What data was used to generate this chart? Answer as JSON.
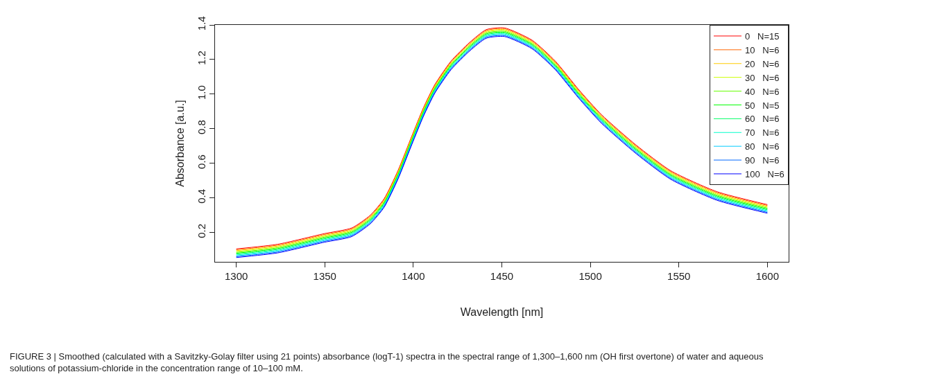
{
  "chart_data": {
    "type": "line",
    "xlabel": "Wavelength [nm]",
    "ylabel": "Absorbance [a.u.]",
    "x": [
      1300,
      1323.5,
      1349.6,
      1365.2,
      1375.7,
      1383.5,
      1391.3,
      1399.2,
      1405.7,
      1412.2,
      1421.3,
      1431.8,
      1441.2,
      1451.5,
      1467.1,
      1480.2,
      1493.2,
      1506.3,
      1525.9,
      1545.4,
      1571.5,
      1600
    ],
    "xlim": [
      1288,
      1612
    ],
    "xticks": [
      1300,
      1350,
      1400,
      1450,
      1500,
      1550,
      1600
    ],
    "ylim": [
      0.03,
      1.4
    ],
    "yticks": [
      0.2,
      0.4,
      0.6,
      0.8,
      {
        "value": 1,
        "label": "1.0"
      },
      1.2,
      1.4
    ],
    "legend": "top right",
    "line_style": "solid",
    "marker": "none",
    "series": [
      {
        "name": "0   N=15",
        "color": "#ff0000",
        "values": [
          0.105,
          0.132,
          0.193,
          0.226,
          0.3,
          0.395,
          0.557,
          0.759,
          0.921,
          1.056,
          1.191,
          1.299,
          1.373,
          1.383,
          1.312,
          1.191,
          1.029,
          0.881,
          0.705,
          0.557,
          0.436,
          0.361
        ]
      },
      {
        "name": "10   N=6",
        "color": "#ff6600",
        "values": [
          0.1,
          0.127,
          0.188,
          0.221,
          0.295,
          0.39,
          0.552,
          0.754,
          0.916,
          1.051,
          1.186,
          1.294,
          1.368,
          1.378,
          1.307,
          1.186,
          1.024,
          0.876,
          0.7,
          0.552,
          0.431,
          0.356
        ]
      },
      {
        "name": "20   N=6",
        "color": "#ffcc00",
        "values": [
          0.095,
          0.122,
          0.183,
          0.216,
          0.29,
          0.385,
          0.547,
          0.749,
          0.911,
          1.046,
          1.181,
          1.289,
          1.363,
          1.373,
          1.302,
          1.181,
          1.019,
          0.871,
          0.695,
          0.547,
          0.426,
          0.351
        ]
      },
      {
        "name": "30   N=6",
        "color": "#ccff00",
        "values": [
          0.09,
          0.117,
          0.178,
          0.211,
          0.285,
          0.38,
          0.542,
          0.744,
          0.906,
          1.041,
          1.176,
          1.284,
          1.358,
          1.368,
          1.297,
          1.176,
          1.014,
          0.866,
          0.69,
          0.542,
          0.421,
          0.346
        ]
      },
      {
        "name": "40   N=6",
        "color": "#66ff00",
        "values": [
          0.085,
          0.112,
          0.173,
          0.206,
          0.28,
          0.375,
          0.537,
          0.739,
          0.901,
          1.036,
          1.171,
          1.279,
          1.353,
          1.363,
          1.292,
          1.171,
          1.009,
          0.861,
          0.685,
          0.537,
          0.416,
          0.341
        ]
      },
      {
        "name": "50   N=5",
        "color": "#00ff00",
        "values": [
          0.08,
          0.107,
          0.168,
          0.201,
          0.275,
          0.37,
          0.532,
          0.734,
          0.896,
          1.031,
          1.166,
          1.274,
          1.348,
          1.358,
          1.287,
          1.166,
          1.004,
          0.856,
          0.68,
          0.532,
          0.411,
          0.336
        ]
      },
      {
        "name": "60   N=6",
        "color": "#00ff66",
        "values": [
          0.075,
          0.102,
          0.163,
          0.196,
          0.27,
          0.365,
          0.527,
          0.729,
          0.891,
          1.026,
          1.161,
          1.269,
          1.343,
          1.353,
          1.282,
          1.161,
          0.999,
          0.851,
          0.675,
          0.527,
          0.406,
          0.331
        ]
      },
      {
        "name": "70   N=6",
        "color": "#00ffcc",
        "values": [
          0.07,
          0.097,
          0.158,
          0.191,
          0.265,
          0.36,
          0.522,
          0.724,
          0.886,
          1.021,
          1.156,
          1.264,
          1.338,
          1.348,
          1.277,
          1.156,
          0.994,
          0.846,
          0.67,
          0.522,
          0.401,
          0.326
        ]
      },
      {
        "name": "80   N=6",
        "color": "#00ccff",
        "values": [
          0.065,
          0.092,
          0.153,
          0.186,
          0.26,
          0.355,
          0.517,
          0.719,
          0.881,
          1.016,
          1.151,
          1.259,
          1.333,
          1.343,
          1.272,
          1.151,
          0.989,
          0.841,
          0.665,
          0.517,
          0.396,
          0.321
        ]
      },
      {
        "name": "90   N=6",
        "color": "#0066ff",
        "values": [
          0.06,
          0.087,
          0.148,
          0.181,
          0.255,
          0.35,
          0.512,
          0.714,
          0.876,
          1.011,
          1.146,
          1.254,
          1.328,
          1.338,
          1.267,
          1.146,
          0.984,
          0.836,
          0.66,
          0.512,
          0.391,
          0.316
        ]
      },
      {
        "name": "100   N=6",
        "color": "#0000ff",
        "values": [
          0.055,
          0.082,
          0.143,
          0.176,
          0.25,
          0.345,
          0.507,
          0.709,
          0.871,
          1.006,
          1.141,
          1.249,
          1.323,
          1.333,
          1.262,
          1.141,
          0.979,
          0.831,
          0.655,
          0.507,
          0.386,
          0.311
        ]
      }
    ],
    "annotations": [
      "FIGURE 3 | Smoothed (calculated with a Savitzky-Golay filter using 21 points) absorbance (logT-1) spectra in the spectral range of 1,300–1,600 nm (OH first overtone) of water and aqueous solutions of potassium-chloride in the concentration range of 10–100 mM."
    ]
  }
}
